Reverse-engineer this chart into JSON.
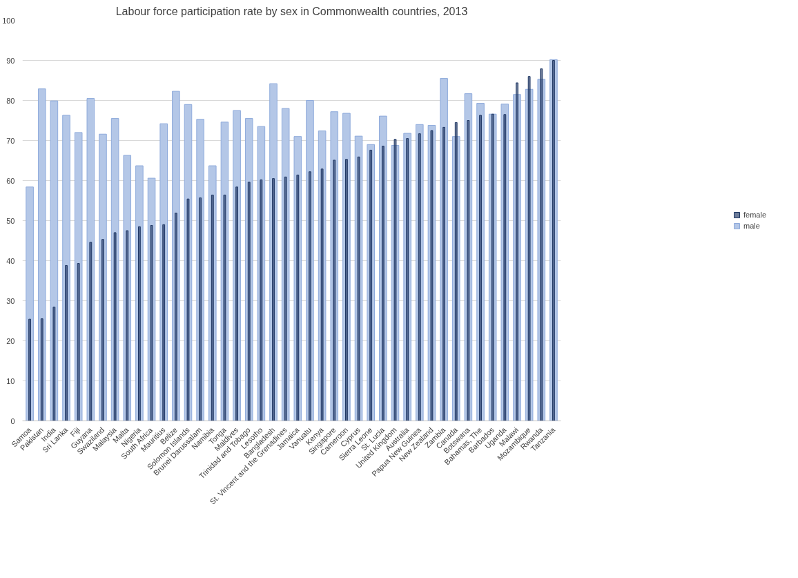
{
  "chart_data": {
    "type": "bar",
    "title": "Labour force participation rate by sex in Commonwealth countries, 2013",
    "categories": [
      "Samoa",
      "Pakistan",
      "India",
      "Sri Lanka",
      "Fiji",
      "Guyana",
      "Swaziland",
      "Malaysia",
      "Malta",
      "Nigeria",
      "South Africa",
      "Mauritius",
      "Belize",
      "Solomon Islands",
      "Brunei Darussalam",
      "Namibia",
      "Tonga",
      "Maldives",
      "Trinidad and Tobago",
      "Lesotho",
      "Bangladesh",
      "St. Vincent and the Grenadines",
      "Jamaica",
      "Vanuatu",
      "Kenya",
      "Singapore",
      "Cameroon",
      "Cyprus",
      "Sierra Leone",
      "St. Lucia",
      "United Kingdom",
      "Australia",
      "Papua New Guinea",
      "New Zealand",
      "Zambia",
      "Canada",
      "Botswana",
      "Bahamas, The",
      "Barbados",
      "Uganda",
      "Malawi",
      "Mozambique",
      "Rwanda",
      "Tanzania"
    ],
    "series": [
      {
        "name": "male",
        "color": "#b4c7e7",
        "values": [
          58.4,
          82.9,
          79.9,
          76.3,
          72.0,
          80.5,
          71.6,
          75.5,
          66.3,
          63.7,
          60.6,
          74.2,
          82.3,
          79.0,
          75.3,
          63.7,
          74.6,
          77.5,
          75.5,
          73.5,
          84.2,
          78.0,
          71.0,
          80.0,
          72.4,
          77.2,
          76.8,
          71.1,
          69.0,
          76.1,
          68.8,
          71.8,
          74.0,
          73.8,
          85.5,
          71.0,
          81.7,
          79.3,
          76.6,
          79.1,
          81.5,
          82.8,
          85.3,
          90.2
        ]
      },
      {
        "name": "female",
        "color": "#203864",
        "values": [
          25.4,
          25.5,
          28.4,
          38.8,
          39.3,
          44.6,
          45.3,
          47.0,
          47.5,
          48.5,
          48.8,
          49.0,
          51.9,
          55.4,
          55.7,
          56.4,
          56.4,
          58.4,
          59.6,
          60.2,
          60.5,
          60.9,
          61.4,
          62.2,
          62.9,
          65.1,
          65.3,
          65.9,
          67.6,
          68.6,
          70.3,
          70.5,
          71.7,
          72.5,
          73.3,
          74.5,
          75.0,
          76.3,
          76.6,
          76.5,
          84.4,
          86.0,
          87.9,
          90.0
        ]
      }
    ],
    "ylim": [
      0,
      100
    ],
    "yticks": [
      0,
      10,
      20,
      30,
      40,
      50,
      60,
      70,
      80,
      90,
      100
    ],
    "grid": "y",
    "legend": "right"
  }
}
